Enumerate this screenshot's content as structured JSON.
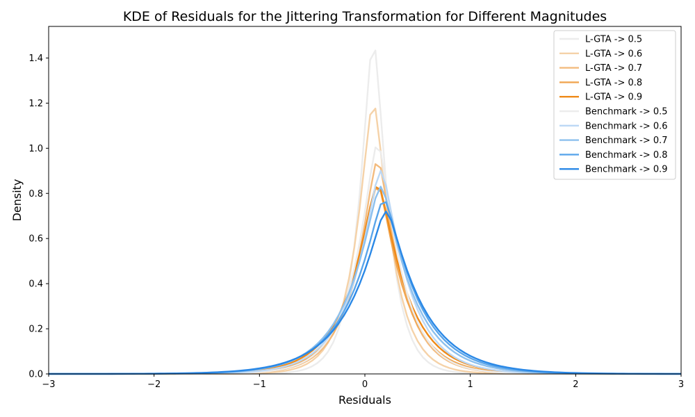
{
  "chart_data": {
    "type": "line",
    "title": "KDE of Residuals for the Jittering Transformation for Different Magnitudes",
    "xlabel": "Residuals",
    "ylabel": "Density",
    "xlim": [
      -3,
      3
    ],
    "ylim": [
      0,
      1.54
    ],
    "xticks": [
      -3,
      -2,
      -1,
      0,
      1,
      2,
      3
    ],
    "xtick_labels": [
      "−3",
      "−2",
      "−1",
      "0",
      "1",
      "2",
      "3"
    ],
    "yticks": [
      0,
      0.2,
      0.4,
      0.6,
      0.8,
      1.0,
      1.2,
      1.4
    ],
    "ytick_labels": [
      "0.0",
      "0.2",
      "0.4",
      "0.6",
      "0.8",
      "1.0",
      "1.2",
      "1.4"
    ],
    "grid": false,
    "legend_position": "top-right",
    "series": [
      {
        "name": "L-GTA -> 0.5",
        "color": "#ececec",
        "width": 2.4,
        "peak": 1.47,
        "mu": 0.08,
        "s": 0.14
      },
      {
        "name": "L-GTA -> 0.6",
        "color": "#f5d2a8",
        "width": 2.4,
        "peak": 1.2,
        "mu": 0.08,
        "s": 0.175
      },
      {
        "name": "L-GTA -> 0.7",
        "color": "#f3bb7e",
        "width": 2.4,
        "peak": 0.945,
        "mu": 0.12,
        "s": 0.22
      },
      {
        "name": "L-GTA -> 0.8",
        "color": "#f0a550",
        "width": 2.4,
        "peak": 0.835,
        "mu": 0.12,
        "s": 0.245
      },
      {
        "name": "L-GTA -> 0.9",
        "color": "#ef8a18",
        "width": 2.4,
        "peak": 0.84,
        "mu": 0.12,
        "s": 0.27
      },
      {
        "name": "Benchmark -> 0.5",
        "color": "#ececec",
        "width": 2.4,
        "peak": 1.02,
        "mu": 0.12,
        "s": 0.22
      },
      {
        "name": "Benchmark -> 0.6",
        "color": "#bcd8f5",
        "width": 2.4,
        "peak": 0.9,
        "mu": 0.15,
        "s": 0.26
      },
      {
        "name": "Benchmark -> 0.7",
        "color": "#8cc0ee",
        "width": 2.4,
        "peak": 0.83,
        "mu": 0.15,
        "s": 0.3
      },
      {
        "name": "Benchmark -> 0.8",
        "color": "#5aa5ea",
        "width": 2.4,
        "peak": 0.77,
        "mu": 0.18,
        "s": 0.32
      },
      {
        "name": "Benchmark -> 0.9",
        "color": "#2a88e6",
        "width": 2.4,
        "peak": 0.72,
        "mu": 0.2,
        "s": 0.34
      }
    ]
  }
}
